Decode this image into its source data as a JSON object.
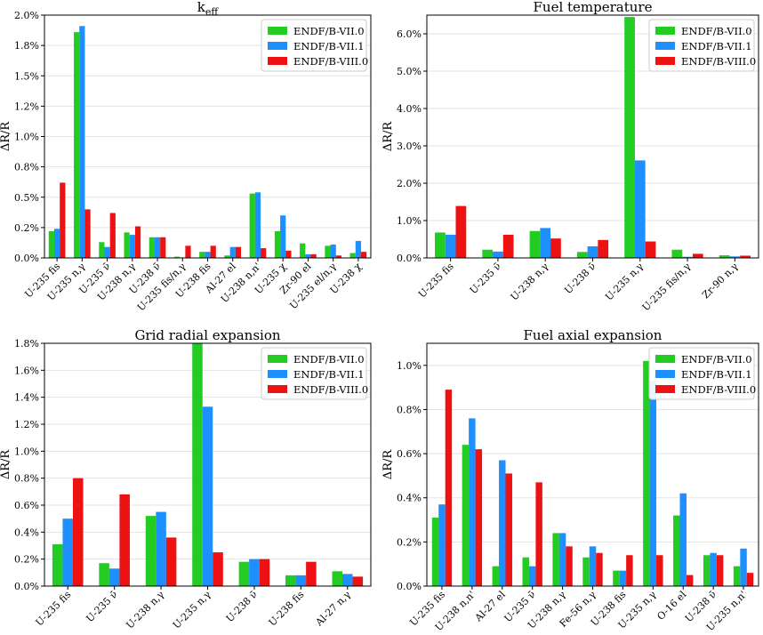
{
  "chart_data": [
    {
      "type": "bar",
      "title": "k",
      "title_sub": "eff",
      "ylabel": "ΔR/R",
      "ylim": [
        0,
        2.0
      ],
      "yticks": [
        0,
        0.25,
        0.5,
        0.75,
        1.0,
        1.25,
        1.5,
        1.75,
        2.0
      ],
      "ytick_labels": [
        "0.0%",
        "0.2%",
        "0.5%",
        "0.8%",
        "1.0%",
        "1.2%",
        "1.5%",
        "1.8%",
        "2.0%"
      ],
      "categories": [
        "U-235 fis",
        "U-235 n,γ",
        "U-235 ν̄",
        "U-238 n,γ",
        "U-238 ν̄",
        "U-235 fis/n,γ",
        "U-238 fis",
        "Al-27 el",
        "U-238 n,n'",
        "U-235 χ",
        "Zr-90 el",
        "U-235 el/n,γ",
        "U-238 χ"
      ],
      "series": [
        {
          "name": "ENDF/B-VII.0",
          "values": [
            0.22,
            1.86,
            0.13,
            0.21,
            0.17,
            0.01,
            0.05,
            0.02,
            0.53,
            0.22,
            0.12,
            0.1,
            0.04
          ]
        },
        {
          "name": "ENDF/B-VII.1",
          "values": [
            0.24,
            1.91,
            0.09,
            0.19,
            0.17,
            0.0,
            0.05,
            0.09,
            0.54,
            0.35,
            0.03,
            0.11,
            0.14
          ]
        },
        {
          "name": "ENDF/B-VIII.0",
          "values": [
            0.62,
            0.4,
            0.37,
            0.26,
            0.17,
            0.1,
            0.1,
            0.09,
            0.08,
            0.06,
            0.03,
            0.02,
            0.05
          ]
        }
      ],
      "legend": "top-right"
    },
    {
      "type": "bar",
      "title": "Fuel temperature",
      "ylabel": "ΔR/R",
      "ylim": [
        0,
        6.5
      ],
      "yticks": [
        0,
        1,
        2,
        3,
        4,
        5,
        6
      ],
      "ytick_labels": [
        "0.0%",
        "1.0%",
        "2.0%",
        "3.0%",
        "4.0%",
        "5.0%",
        "6.0%"
      ],
      "categories": [
        "U-235 fis",
        "U-235 ν̄",
        "U-238 n,γ",
        "U-238 ν̄",
        "U-235 n,γ",
        "U-235 fis/n,γ",
        "Zr-90 n,γ"
      ],
      "series": [
        {
          "name": "ENDF/B-VII.0",
          "values": [
            0.68,
            0.22,
            0.72,
            0.16,
            6.45,
            0.22,
            0.07
          ]
        },
        {
          "name": "ENDF/B-VII.1",
          "values": [
            0.62,
            0.17,
            0.8,
            0.31,
            2.61,
            0.03,
            0.04
          ]
        },
        {
          "name": "ENDF/B-VIII.0",
          "values": [
            1.39,
            0.62,
            0.52,
            0.48,
            0.44,
            0.11,
            0.06
          ]
        }
      ],
      "legend": "top-right"
    },
    {
      "type": "bar",
      "title": "Grid radial expansion",
      "ylabel": "ΔR/R",
      "ylim": [
        0,
        1.8
      ],
      "yticks": [
        0,
        0.2,
        0.4,
        0.6,
        0.8,
        1.0,
        1.2,
        1.4,
        1.6,
        1.8
      ],
      "ytick_labels": [
        "0.0%",
        "0.2%",
        "0.4%",
        "0.6%",
        "0.8%",
        "1.0%",
        "1.2%",
        "1.4%",
        "1.6%",
        "1.8%"
      ],
      "categories": [
        "U-235 fis",
        "U-235 ν̄",
        "U-238 n,γ",
        "U-235 n,γ",
        "U-238 ν̄",
        "U-238 fis",
        "Al-27 n,γ"
      ],
      "series": [
        {
          "name": "ENDF/B-VII.0",
          "values": [
            0.31,
            0.17,
            0.52,
            1.8,
            0.18,
            0.08,
            0.11
          ]
        },
        {
          "name": "ENDF/B-VII.1",
          "values": [
            0.5,
            0.13,
            0.55,
            1.33,
            0.2,
            0.08,
            0.09
          ]
        },
        {
          "name": "ENDF/B-VIII.0",
          "values": [
            0.8,
            0.68,
            0.36,
            0.25,
            0.2,
            0.18,
            0.07
          ]
        }
      ],
      "legend": "top-right"
    },
    {
      "type": "bar",
      "title": "Fuel axial expansion",
      "ylabel": "ΔR/R",
      "ylim": [
        0,
        1.1
      ],
      "yticks": [
        0,
        0.2,
        0.4,
        0.6,
        0.8,
        1.0
      ],
      "ytick_labels": [
        "0.0%",
        "0.2%",
        "0.4%",
        "0.6%",
        "0.8%",
        "1.0%"
      ],
      "categories": [
        "U-235 fis",
        "U-238 n,n'",
        "Al-27 el",
        "U-235 ν̄",
        "U-238 n,γ",
        "Fe-56 n,γ",
        "U-238 fis",
        "U-235 n,γ",
        "O-16 el",
        "U-238 ν̄",
        "U-235 n,n'"
      ],
      "series": [
        {
          "name": "ENDF/B-VII.0",
          "values": [
            0.31,
            0.64,
            0.09,
            0.13,
            0.24,
            0.13,
            0.07,
            1.02,
            0.32,
            0.14,
            0.09
          ]
        },
        {
          "name": "ENDF/B-VII.1",
          "values": [
            0.37,
            0.76,
            0.57,
            0.09,
            0.24,
            0.18,
            0.07,
            0.93,
            0.42,
            0.15,
            0.17
          ]
        },
        {
          "name": "ENDF/B-VIII.0",
          "values": [
            0.89,
            0.62,
            0.51,
            0.47,
            0.18,
            0.15,
            0.14,
            0.14,
            0.05,
            0.14,
            0.06
          ]
        }
      ],
      "legend": "top-right"
    }
  ],
  "colors": {
    "series": [
      "#22cc22",
      "#1e8fff",
      "#ee1111"
    ]
  }
}
